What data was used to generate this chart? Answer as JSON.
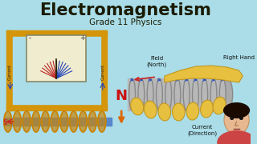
{
  "bg_color": "#aadde8",
  "title": "Electromagnetism",
  "subtitle": "Grade 11 Physics",
  "title_color": "#1a1a00",
  "subtitle_color": "#1a1a00",
  "title_fontsize": 15,
  "subtitle_fontsize": 7.5,
  "label_field": "Field\n(North)",
  "label_rh": "Right Hand",
  "label_current": "Current\n(Direction)",
  "label_n": "N",
  "n_color": "#cc1111",
  "gold_color": "#d4950a",
  "coil_color": "#c8850a",
  "gray_cyl": "#b0b0b0",
  "hand_color": "#e8c040",
  "hand_edge": "#c09820"
}
